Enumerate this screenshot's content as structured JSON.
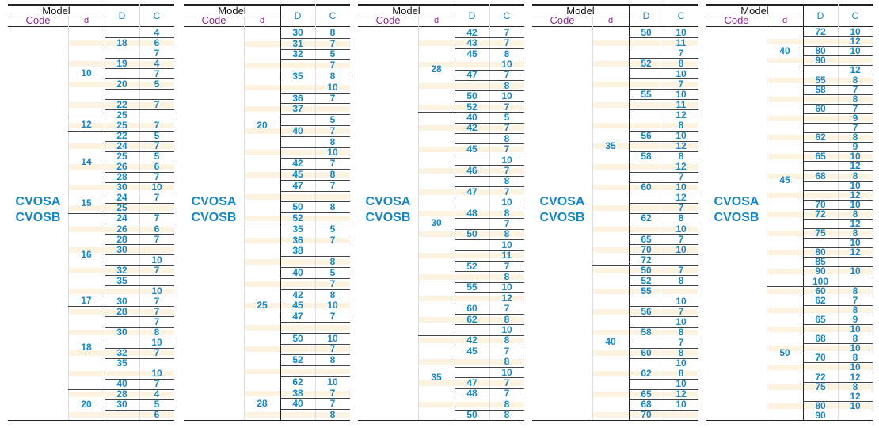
{
  "header": {
    "model": "Model",
    "code": "Code",
    "d": "d",
    "D": "D",
    "C": "C"
  },
  "code_lines": [
    "CVOSA",
    "CVOSB"
  ],
  "panels": [
    {
      "groups": [
        {
          "d": "10",
          "rows": [
            [
              "",
              "4"
            ],
            [
              "18",
              "6"
            ],
            [
              "",
              "7"
            ],
            [
              "19",
              "4"
            ],
            [
              "",
              "7"
            ],
            [
              "20",
              "5"
            ],
            [
              "",
              ""
            ],
            [
              "22",
              "7"
            ],
            [
              "25",
              ""
            ]
          ]
        },
        {
          "d": "12",
          "rows": [
            [
              "25",
              "7"
            ]
          ]
        },
        {
          "d": "14",
          "rows": [
            [
              "22",
              "5"
            ],
            [
              "24",
              "7"
            ],
            [
              "25",
              "5"
            ],
            [
              "26",
              "6"
            ],
            [
              "28",
              "7"
            ],
            [
              "30",
              "10"
            ]
          ]
        },
        {
          "d": "15",
          "rows": [
            [
              "24",
              "7"
            ],
            [
              "25",
              ""
            ]
          ]
        },
        {
          "d": "16",
          "rows": [
            [
              "24",
              "7"
            ],
            [
              "26",
              "6"
            ],
            [
              "28",
              "7"
            ],
            [
              "30",
              ""
            ],
            [
              "",
              "10"
            ],
            [
              "32",
              "7"
            ],
            [
              "35",
              ""
            ],
            [
              "",
              "10"
            ]
          ]
        },
        {
          "d": "17",
          "rows": [
            [
              "30",
              "7"
            ]
          ]
        },
        {
          "d": "18",
          "rows": [
            [
              "28",
              "7"
            ],
            [
              "",
              "7"
            ],
            [
              "30",
              "8"
            ],
            [
              "",
              "10"
            ],
            [
              "32",
              "7"
            ],
            [
              "35",
              ""
            ],
            [
              "",
              "10"
            ],
            [
              "40",
              "7"
            ]
          ]
        },
        {
          "d": "20",
          "rows": [
            [
              "28",
              "4"
            ],
            [
              "30",
              "5"
            ],
            [
              "",
              "6"
            ]
          ]
        }
      ]
    },
    {
      "groups": [
        {
          "d": "20",
          "rows": [
            [
              "30",
              "8"
            ],
            [
              "31",
              "7"
            ],
            [
              "32",
              "5"
            ],
            [
              "",
              "7"
            ],
            [
              "35",
              "8"
            ],
            [
              "",
              "10"
            ],
            [
              "36",
              "7"
            ],
            [
              "37",
              ""
            ],
            [
              "",
              "5"
            ],
            [
              "40",
              "7"
            ],
            [
              "",
              "8"
            ],
            [
              "",
              "10"
            ],
            [
              "42",
              "7"
            ],
            [
              "45",
              "8"
            ],
            [
              "47",
              "7"
            ],
            [
              "",
              ""
            ],
            [
              "50",
              "8"
            ],
            [
              "52",
              ""
            ]
          ]
        },
        {
          "d": "25",
          "rows": [
            [
              "35",
              "5"
            ],
            [
              "36",
              "7"
            ],
            [
              "38",
              ""
            ],
            [
              "",
              "8"
            ],
            [
              "40",
              "5"
            ],
            [
              "",
              "7"
            ],
            [
              "42",
              "8"
            ],
            [
              "45",
              "10"
            ],
            [
              "47",
              "7"
            ],
            [
              "",
              ""
            ],
            [
              "50",
              "10"
            ],
            [
              "",
              "7"
            ],
            [
              "52",
              "8"
            ],
            [
              "",
              ""
            ],
            [
              "62",
              "10"
            ]
          ]
        },
        {
          "d": "28",
          "rows": [
            [
              "38",
              "7"
            ],
            [
              "40",
              "7"
            ],
            [
              "",
              "8"
            ]
          ]
        }
      ]
    },
    {
      "groups": [
        {
          "d": "28",
          "rows": [
            [
              "42",
              "7"
            ],
            [
              "43",
              "7"
            ],
            [
              "45",
              "8"
            ],
            [
              "",
              "10"
            ],
            [
              "47",
              "7"
            ],
            [
              "",
              "8"
            ],
            [
              "50",
              "10"
            ],
            [
              "52",
              "7"
            ]
          ]
        },
        {
          "d": "30",
          "rows": [
            [
              "40",
              "5"
            ],
            [
              "42",
              "7"
            ],
            [
              "",
              "8"
            ],
            [
              "45",
              "7"
            ],
            [
              "",
              "10"
            ],
            [
              "46",
              "7"
            ],
            [
              "",
              "8"
            ],
            [
              "47",
              "7"
            ],
            [
              "",
              "10"
            ],
            [
              "48",
              "8"
            ],
            [
              "",
              "7"
            ],
            [
              "50",
              "8"
            ],
            [
              "",
              "10"
            ],
            [
              "",
              "11"
            ],
            [
              "52",
              "7"
            ],
            [
              "",
              "8"
            ],
            [
              "55",
              "10"
            ],
            [
              "",
              "12"
            ],
            [
              "60",
              "7"
            ],
            [
              "62",
              "8"
            ],
            [
              "",
              "10"
            ]
          ]
        },
        {
          "d": "35",
          "rows": [
            [
              "42",
              "8"
            ],
            [
              "45",
              "7"
            ],
            [
              "",
              "8"
            ],
            [
              "",
              "10"
            ],
            [
              "47",
              "7"
            ],
            [
              "48",
              "7"
            ],
            [
              "",
              "8"
            ],
            [
              "50",
              "8"
            ]
          ]
        }
      ]
    },
    {
      "groups": [
        {
          "d": "35",
          "rows": [
            [
              "50",
              "10"
            ],
            [
              "",
              "11"
            ],
            [
              "",
              "7"
            ],
            [
              "52",
              "8"
            ],
            [
              "",
              "10"
            ],
            [
              "",
              "7"
            ],
            [
              "55",
              "10"
            ],
            [
              "",
              "11"
            ],
            [
              "",
              "12"
            ],
            [
              "",
              "8"
            ],
            [
              "56",
              "10"
            ],
            [
              "",
              "12"
            ],
            [
              "58",
              "8"
            ],
            [
              "",
              "12"
            ],
            [
              "",
              "7"
            ],
            [
              "60",
              "10"
            ],
            [
              "",
              "12"
            ],
            [
              "",
              "7"
            ],
            [
              "62",
              "8"
            ],
            [
              "",
              "10"
            ],
            [
              "65",
              "7"
            ],
            [
              "70",
              "10"
            ],
            [
              "72",
              ""
            ]
          ]
        },
        {
          "d": "40",
          "rows": [
            [
              "50",
              "7"
            ],
            [
              "52",
              "8"
            ],
            [
              "55",
              ""
            ],
            [
              "",
              "10"
            ],
            [
              "56",
              "7"
            ],
            [
              "",
              "10"
            ],
            [
              "58",
              "8"
            ],
            [
              "",
              "7"
            ],
            [
              "60",
              "8"
            ],
            [
              "",
              "10"
            ],
            [
              "62",
              "8"
            ],
            [
              "",
              "10"
            ],
            [
              "65",
              "12"
            ],
            [
              "68",
              "10"
            ],
            [
              "70",
              ""
            ]
          ]
        }
      ]
    },
    {
      "groups": [
        {
          "d": "40",
          "rows": [
            [
              "72",
              "10"
            ],
            [
              "",
              "12"
            ],
            [
              "80",
              "10"
            ],
            [
              "90",
              ""
            ],
            [
              "",
              "12"
            ]
          ]
        },
        {
          "d": "45",
          "rows": [
            [
              "55",
              "8"
            ],
            [
              "58",
              "7"
            ],
            [
              "",
              "8"
            ],
            [
              "60",
              "7"
            ],
            [
              "",
              "9"
            ],
            [
              "",
              "7"
            ],
            [
              "62",
              "8"
            ],
            [
              "",
              "9"
            ],
            [
              "65",
              "10"
            ],
            [
              "",
              "12"
            ],
            [
              "68",
              "8"
            ],
            [
              "",
              "10"
            ],
            [
              "",
              "12"
            ],
            [
              "70",
              "10"
            ],
            [
              "72",
              "8"
            ],
            [
              "",
              "12"
            ],
            [
              "75",
              "8"
            ],
            [
              "",
              "10"
            ],
            [
              "80",
              "12"
            ],
            [
              "85",
              ""
            ],
            [
              "90",
              "10"
            ],
            [
              "100",
              ""
            ]
          ]
        },
        {
          "d": "50",
          "rows": [
            [
              "60",
              "8"
            ],
            [
              "62",
              "7"
            ],
            [
              "",
              "8"
            ],
            [
              "65",
              "9"
            ],
            [
              "",
              "10"
            ],
            [
              "68",
              "8"
            ],
            [
              "",
              "10"
            ],
            [
              "70",
              "8"
            ],
            [
              "",
              "10"
            ],
            [
              "72",
              "12"
            ],
            [
              "75",
              "8"
            ],
            [
              "",
              "12"
            ],
            [
              "80",
              "10"
            ],
            [
              "90",
              ""
            ]
          ]
        }
      ]
    }
  ]
}
